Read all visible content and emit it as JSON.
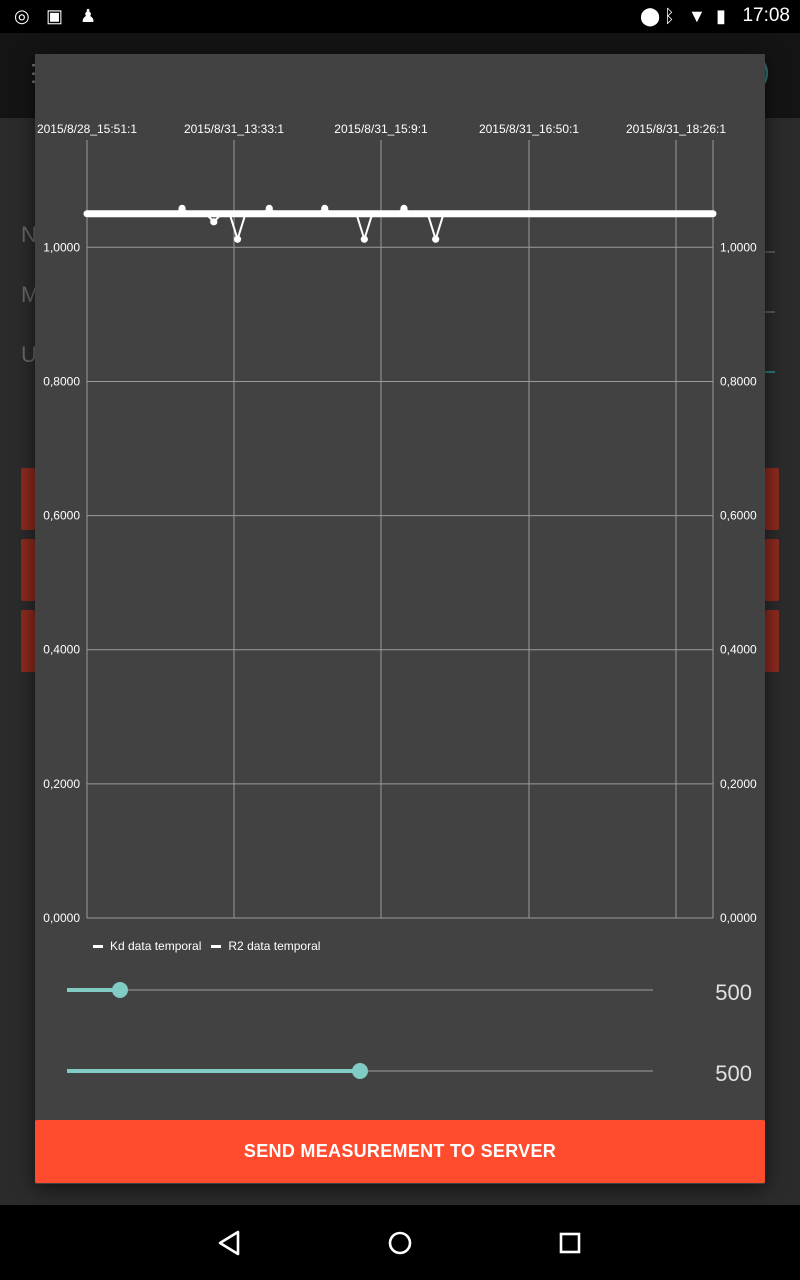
{
  "status_bar": {
    "time": "17:08",
    "left_icons": [
      "target-icon",
      "clipboard-icon",
      "android-icon"
    ],
    "right_icons": [
      "location-icon",
      "bluetooth-icon",
      "wifi-icon",
      "battery-icon"
    ]
  },
  "background": {
    "menu_icon": "hamburger-icon",
    "letters": [
      "N",
      "M",
      "U"
    ]
  },
  "dialog": {
    "chart_data": {
      "type": "line",
      "x_labels": [
        "2015/8/28_15:51:1",
        "2015/8/31_13:33:1",
        "2015/8/31_15:9:1",
        "2015/8/31_16:50:1",
        "2015/8/31_18:26:1"
      ],
      "y_ticks": [
        "1,0000",
        "0,8000",
        "0,6000",
        "0,4000",
        "0,2000",
        "0,0000"
      ],
      "ylim": [
        0,
        1.16
      ],
      "grid": true,
      "series": [
        {
          "name": "Kd data temporal",
          "color": "#ffffff",
          "values": [
            1.05,
            1.05,
            1.05,
            1.05,
            1.05,
            1.05,
            1.05,
            1.05,
            1.05,
            1.05,
            1.05,
            1.05,
            1.05,
            1.05,
            1.05,
            1.05,
            1.05,
            1.05,
            1.05,
            1.05,
            1.05,
            1.05,
            1.05,
            1.05,
            1.05,
            1.05,
            1.05,
            1.05,
            1.05,
            1.05,
            1.05,
            1.05,
            1.05,
            1.05,
            1.05,
            1.05,
            1.05,
            1.05,
            1.05,
            1.05
          ]
        },
        {
          "name": "R2 data temporal",
          "color": "#ffffff",
          "values": [
            1.05,
            1.05,
            1.05,
            1.05,
            1.05,
            1.05,
            1.05,
            1.05,
            1.05,
            1.05,
            1.05,
            1.05,
            1.058,
            1.05,
            1.05,
            1.05,
            1.038,
            1.05,
            1.05,
            1.012,
            1.05,
            1.05,
            1.05,
            1.058,
            1.05,
            1.05,
            1.05,
            1.05,
            1.05,
            1.05,
            1.058,
            1.05,
            1.05,
            1.05,
            1.05,
            1.012,
            1.05,
            1.05,
            1.05,
            1.05,
            1.058,
            1.05,
            1.05,
            1.05,
            1.012,
            1.05,
            1.05,
            1.05,
            1.05,
            1.05,
            1.05,
            1.05,
            1.05,
            1.05,
            1.05,
            1.05,
            1.05,
            1.05,
            1.05,
            1.05,
            1.05,
            1.05,
            1.05,
            1.05,
            1.05,
            1.05,
            1.05,
            1.05,
            1.05,
            1.05,
            1.05,
            1.05,
            1.05,
            1.05,
            1.05,
            1.05,
            1.05,
            1.05,
            1.05,
            1.05
          ]
        }
      ]
    },
    "slider1": {
      "value": 500,
      "fraction": 0.09,
      "value_label": "500"
    },
    "slider2": {
      "value": 500,
      "fraction": 0.5,
      "value_label": "500"
    },
    "send_button_label": "SEND MEASUREMENT TO SERVER"
  },
  "nav_bar": {
    "icons": [
      "back-icon",
      "home-icon",
      "recents-icon"
    ]
  }
}
